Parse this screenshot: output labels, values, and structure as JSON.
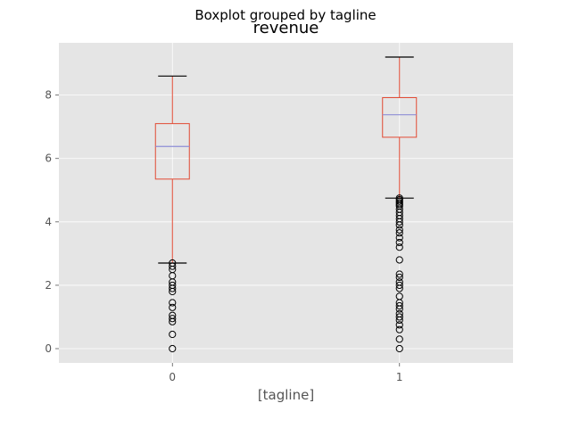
{
  "chart_data": {
    "type": "boxplot",
    "suptitle": "Boxplot grouped by tagline",
    "title": "revenue",
    "xlabel": "[tagline]",
    "ylabel": "",
    "categories": [
      "0",
      "1"
    ],
    "ylim": [
      -0.45,
      9.65
    ],
    "yticks": [
      0,
      2,
      4,
      6,
      8
    ],
    "grid": true,
    "background": "#e5e5e5",
    "colors": {
      "box": "#e24a33",
      "median": "#8e8ed6",
      "caps": "#000000",
      "fliers": "#000000",
      "grid": "#ffffff",
      "tick_text": "#555555"
    },
    "boxes": [
      {
        "category": "0",
        "whisker_low": 2.7,
        "q1": 5.35,
        "median": 6.38,
        "q3": 7.1,
        "whisker_high": 8.6,
        "fliers": [
          0.0,
          0.45,
          0.85,
          0.95,
          1.05,
          1.3,
          1.45,
          1.8,
          1.9,
          2.0,
          2.1,
          2.3,
          2.5,
          2.6,
          2.7
        ]
      },
      {
        "category": "1",
        "whisker_low": 4.75,
        "q1": 6.67,
        "median": 7.38,
        "q3": 7.92,
        "whisker_high": 9.2,
        "fliers": [
          0.0,
          0.3,
          0.6,
          0.75,
          0.9,
          1.0,
          1.1,
          1.25,
          1.35,
          1.45,
          1.65,
          1.9,
          2.0,
          2.1,
          2.25,
          2.35,
          2.8,
          3.2,
          3.35,
          3.5,
          3.65,
          3.75,
          3.9,
          4.0,
          4.1,
          4.2,
          4.3,
          4.4,
          4.5,
          4.55,
          4.6,
          4.65,
          4.7,
          4.75
        ]
      }
    ]
  }
}
